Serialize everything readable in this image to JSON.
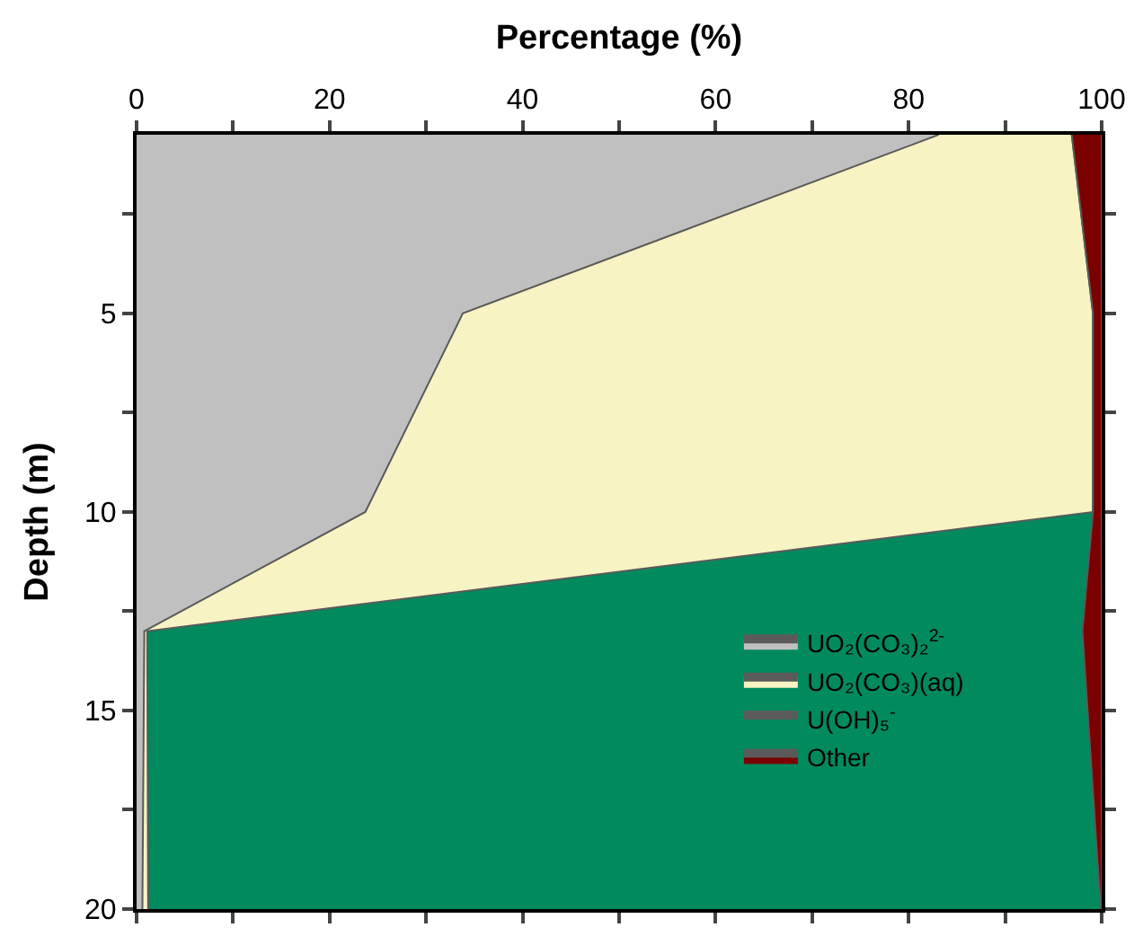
{
  "chart_data": {
    "type": "area",
    "orientation": "horizontal",
    "stacked": true,
    "xlabel": "Percentage (%)",
    "ylabel": "Depth (m)",
    "x": [
      0.5,
      5,
      10,
      13,
      20
    ],
    "series": [
      {
        "name": "UO₂(CO₃)₂$^{2-}$",
        "color": "#c0c0c0",
        "values": [
          83.1,
          33.8,
          23.7,
          0.8,
          0.6
        ]
      },
      {
        "name": "UO₂(CO₃)(aq)",
        "color": "#f7f3c3",
        "values": [
          13.8,
          65.3,
          75.4,
          0.3,
          0.6
        ]
      },
      {
        "name": "U(OH)₅$^{-}$",
        "color": "#008a5e",
        "values": [
          0,
          0,
          0,
          96.9,
          98.7
        ]
      },
      {
        "name": "Other",
        "color": "#7b0000",
        "values": [
          3.1,
          0.9,
          0.9,
          2.0,
          0.1
        ]
      }
    ],
    "xlim": [
      0,
      100
    ],
    "xticks": [
      0,
      {
        "value": 10,
        "label": null
      },
      20,
      {
        "value": 30,
        "label": null
      },
      40,
      {
        "value": 50,
        "label": null
      },
      60,
      {
        "value": 70,
        "label": null
      },
      80,
      {
        "value": 90,
        "label": null
      },
      100
    ],
    "ylim": [
      20,
      0.5
    ],
    "yticks": [
      {
        "value": 2.5,
        "label": null
      },
      5,
      {
        "value": 7.5,
        "label": null
      },
      10,
      {
        "value": 12.5,
        "label": null
      },
      15,
      {
        "value": 17.5,
        "label": null
      },
      20
    ],
    "legend": "bottom right"
  }
}
